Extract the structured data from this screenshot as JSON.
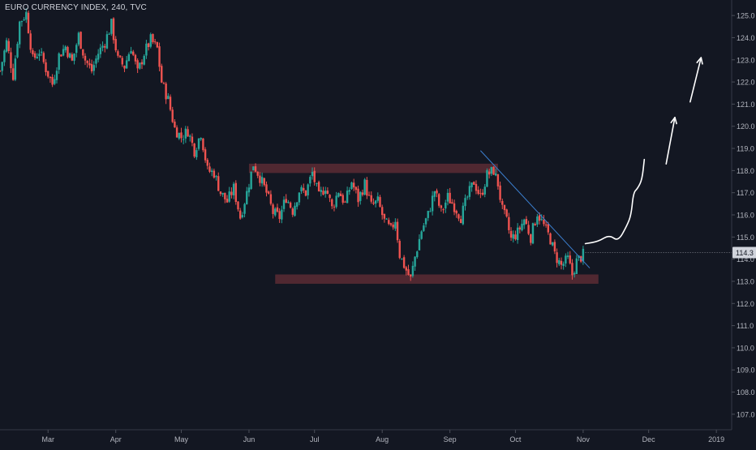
{
  "chart_data": {
    "type": "candlestick",
    "title": "EURO CURRENCY INDEX, 240, TVC",
    "y_ticks": [
      107.0,
      108.0,
      109.0,
      110.0,
      111.0,
      112.0,
      113.0,
      114.0,
      115.0,
      116.0,
      117.0,
      118.0,
      119.0,
      120.0,
      121.0,
      122.0,
      123.0,
      124.0,
      125.0
    ],
    "ylim": [
      106.3,
      125.7
    ],
    "x_ticks": [
      {
        "label": "Mar",
        "day": 0
      },
      {
        "label": "Apr",
        "day": 31
      },
      {
        "label": "May",
        "day": 61
      },
      {
        "label": "Jun",
        "day": 92
      },
      {
        "label": "Jul",
        "day": 122
      },
      {
        "label": "Aug",
        "day": 153
      },
      {
        "label": "Sep",
        "day": 184
      },
      {
        "label": "Oct",
        "day": 214
      },
      {
        "label": "Nov",
        "day": 245
      },
      {
        "label": "Dec",
        "day": 275
      },
      {
        "label": "2019",
        "day": 306
      }
    ],
    "xlim": [
      -22,
      313
    ],
    "current_price": "114.3",
    "price_path": [
      [
        -22,
        122.5
      ],
      [
        -19,
        123.8
      ],
      [
        -16,
        122.3
      ],
      [
        -13,
        124.7
      ],
      [
        -10,
        125.1
      ],
      [
        -7,
        123.0
      ],
      [
        -4,
        123.4
      ],
      [
        -1,
        122.6
      ],
      [
        2,
        121.9
      ],
      [
        5,
        123.2
      ],
      [
        8,
        123.6
      ],
      [
        11,
        122.9
      ],
      [
        14,
        124.1
      ],
      [
        17,
        123.0
      ],
      [
        20,
        122.5
      ],
      [
        23,
        123.3
      ],
      [
        26,
        123.8
      ],
      [
        29,
        124.6
      ],
      [
        32,
        123.0
      ],
      [
        35,
        122.7
      ],
      [
        38,
        123.6
      ],
      [
        41,
        122.4
      ],
      [
        44,
        123.3
      ],
      [
        47,
        123.9
      ],
      [
        50,
        123.5
      ],
      [
        52,
        122.0
      ],
      [
        55,
        121.2
      ],
      [
        58,
        119.9
      ],
      [
        61,
        119.5
      ],
      [
        64,
        119.8
      ],
      [
        67,
        118.9
      ],
      [
        70,
        119.7
      ],
      [
        73,
        118.0
      ],
      [
        76,
        117.9
      ],
      [
        79,
        117.0
      ],
      [
        82,
        116.6
      ],
      [
        85,
        117.2
      ],
      [
        88,
        115.9
      ],
      [
        91,
        117.0
      ],
      [
        94,
        118.3
      ],
      [
        97,
        117.7
      ],
      [
        100,
        117.0
      ],
      [
        103,
        116.1
      ],
      [
        106,
        115.9
      ],
      [
        109,
        116.8
      ],
      [
        112,
        116.2
      ],
      [
        115,
        117.1
      ],
      [
        118,
        117.0
      ],
      [
        121,
        117.9
      ],
      [
        124,
        116.8
      ],
      [
        127,
        117.3
      ],
      [
        130,
        116.3
      ],
      [
        133,
        117.1
      ],
      [
        136,
        116.5
      ],
      [
        139,
        117.5
      ],
      [
        142,
        116.7
      ],
      [
        145,
        117.4
      ],
      [
        148,
        116.4
      ],
      [
        151,
        116.6
      ],
      [
        154,
        115.7
      ],
      [
        157,
        115.3
      ],
      [
        159,
        115.8
      ],
      [
        161,
        114.2
      ],
      [
        164,
        113.5
      ],
      [
        166,
        113.1
      ],
      [
        168,
        114.1
      ],
      [
        171,
        115.3
      ],
      [
        174,
        116.0
      ],
      [
        177,
        117.1
      ],
      [
        180,
        116.1
      ],
      [
        183,
        116.8
      ],
      [
        186,
        116.4
      ],
      [
        189,
        115.9
      ],
      [
        192,
        116.8
      ],
      [
        195,
        117.5
      ],
      [
        198,
        116.8
      ],
      [
        201,
        117.8
      ],
      [
        204,
        118.0
      ],
      [
        206,
        117.4
      ],
      [
        208,
        116.2
      ],
      [
        210,
        115.7
      ],
      [
        212,
        114.9
      ],
      [
        215,
        115.2
      ],
      [
        218,
        115.8
      ],
      [
        221,
        115.0
      ],
      [
        224,
        116.1
      ],
      [
        227,
        115.5
      ],
      [
        230,
        114.9
      ],
      [
        232,
        114.2
      ],
      [
        235,
        113.7
      ],
      [
        238,
        114.0
      ],
      [
        240,
        113.3
      ],
      [
        242,
        113.9
      ],
      [
        244,
        114.1
      ],
      [
        246,
        114.3
      ]
    ],
    "zones": [
      {
        "day_start": 92,
        "day_end": 206,
        "low": 118.0,
        "high": 118.2
      },
      {
        "day_start": 104,
        "day_end": 252,
        "low": 113.0,
        "high": 113.2
      }
    ],
    "trendline": {
      "from": [
        198,
        118.9
      ],
      "to": [
        248,
        113.6
      ]
    },
    "projection_path": [
      [
        246,
        114.7
      ],
      [
        252,
        114.8
      ],
      [
        257,
        115.1
      ],
      [
        261,
        114.8
      ],
      [
        265,
        115.5
      ],
      [
        267,
        116.0
      ],
      [
        268,
        117.0
      ],
      [
        270,
        117.2
      ],
      [
        272,
        117.6
      ],
      [
        273,
        118.5
      ]
    ],
    "arrows": [
      {
        "from": [
          283,
          118.3
        ],
        "to": [
          287,
          120.4
        ]
      },
      {
        "from": [
          294,
          121.1
        ],
        "to": [
          299,
          123.1
        ]
      }
    ],
    "colors": {
      "background": "#131722",
      "up": "#26a69a",
      "down": "#ef5350",
      "zone": "#5c2b34",
      "trendline": "#3b7fcf",
      "projection": "#ffffff",
      "axis_text": "#b2b5be",
      "price_badge_bg": "#d1d4dc",
      "price_badge_text": "#131722"
    }
  }
}
